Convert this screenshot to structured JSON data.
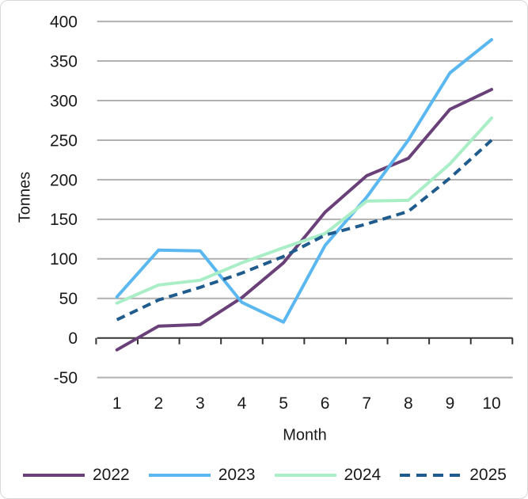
{
  "chart_data": {
    "type": "line",
    "title": "",
    "xlabel": "Month",
    "ylabel": "Tonnes",
    "categories": [
      "1",
      "2",
      "3",
      "4",
      "5",
      "6",
      "7",
      "8",
      "9",
      "10"
    ],
    "y_ticks": [
      400,
      350,
      300,
      250,
      200,
      150,
      100,
      50,
      0,
      -50
    ],
    "ylim": [
      -50,
      400
    ],
    "grid": true,
    "legend_position": "bottom",
    "series": [
      {
        "name": "2022",
        "color": "#6a4079",
        "style": "solid",
        "values": [
          -15,
          15,
          17,
          51,
          95,
          159,
          205,
          227,
          289,
          314
        ]
      },
      {
        "name": "2023",
        "color": "#5bb7f0",
        "style": "solid",
        "values": [
          52,
          111,
          110,
          45,
          20,
          117,
          178,
          250,
          335,
          377
        ]
      },
      {
        "name": "2024",
        "color": "#a9eec6",
        "style": "solid",
        "values": [
          44,
          67,
          73,
          95,
          114,
          132,
          173,
          174,
          220,
          278
        ]
      },
      {
        "name": "2025",
        "color": "#1f5c8d",
        "style": "dashed",
        "values": [
          23,
          48,
          64,
          82,
          103,
          130,
          144,
          160,
          202,
          250
        ]
      }
    ]
  },
  "colors": {
    "grid": "#b1b1b1",
    "axis": "#333333",
    "text": "#1a1a1a",
    "card_border": "#d8d8d8",
    "background": "#ffffff"
  }
}
